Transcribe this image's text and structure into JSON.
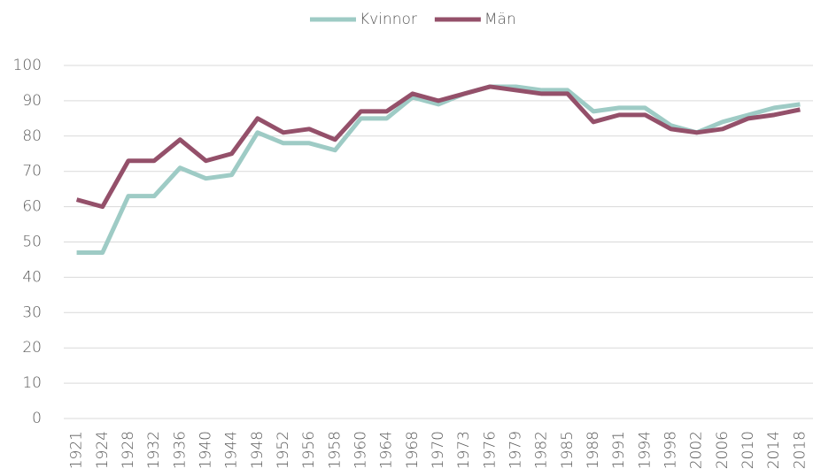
{
  "chart_data": {
    "type": "line",
    "categories": [
      "1921",
      "1924",
      "1928",
      "1932",
      "1936",
      "1940",
      "1944",
      "1948",
      "1952",
      "1956",
      "1958",
      "1960",
      "1964",
      "1968",
      "1970",
      "1973",
      "1976",
      "1979",
      "1982",
      "1985",
      "1988",
      "1991",
      "1994",
      "1998",
      "2002",
      "2006",
      "2010",
      "2014",
      "2018"
    ],
    "series": [
      {
        "name": "Kvinnor",
        "color": "#9ecbc5",
        "values": [
          47,
          47,
          63,
          63,
          71,
          68,
          69,
          81,
          78,
          78,
          76,
          85,
          85,
          91,
          89,
          92,
          94,
          94,
          93,
          93,
          87,
          88,
          88,
          83,
          81,
          84,
          86,
          88,
          89
        ]
      },
      {
        "name": "Män",
        "color": "#94506a",
        "values": [
          62,
          60,
          73,
          73,
          79,
          73,
          75,
          85,
          81,
          82,
          79,
          87,
          87,
          92,
          90,
          92,
          94,
          93,
          92,
          92,
          84,
          86,
          86,
          82,
          81,
          82,
          85,
          86,
          87.5
        ]
      }
    ],
    "ylim": [
      0,
      100
    ],
    "yticks": [
      0,
      10,
      20,
      30,
      40,
      50,
      60,
      70,
      80,
      90,
      100
    ],
    "grid": true,
    "legend": "top"
  }
}
